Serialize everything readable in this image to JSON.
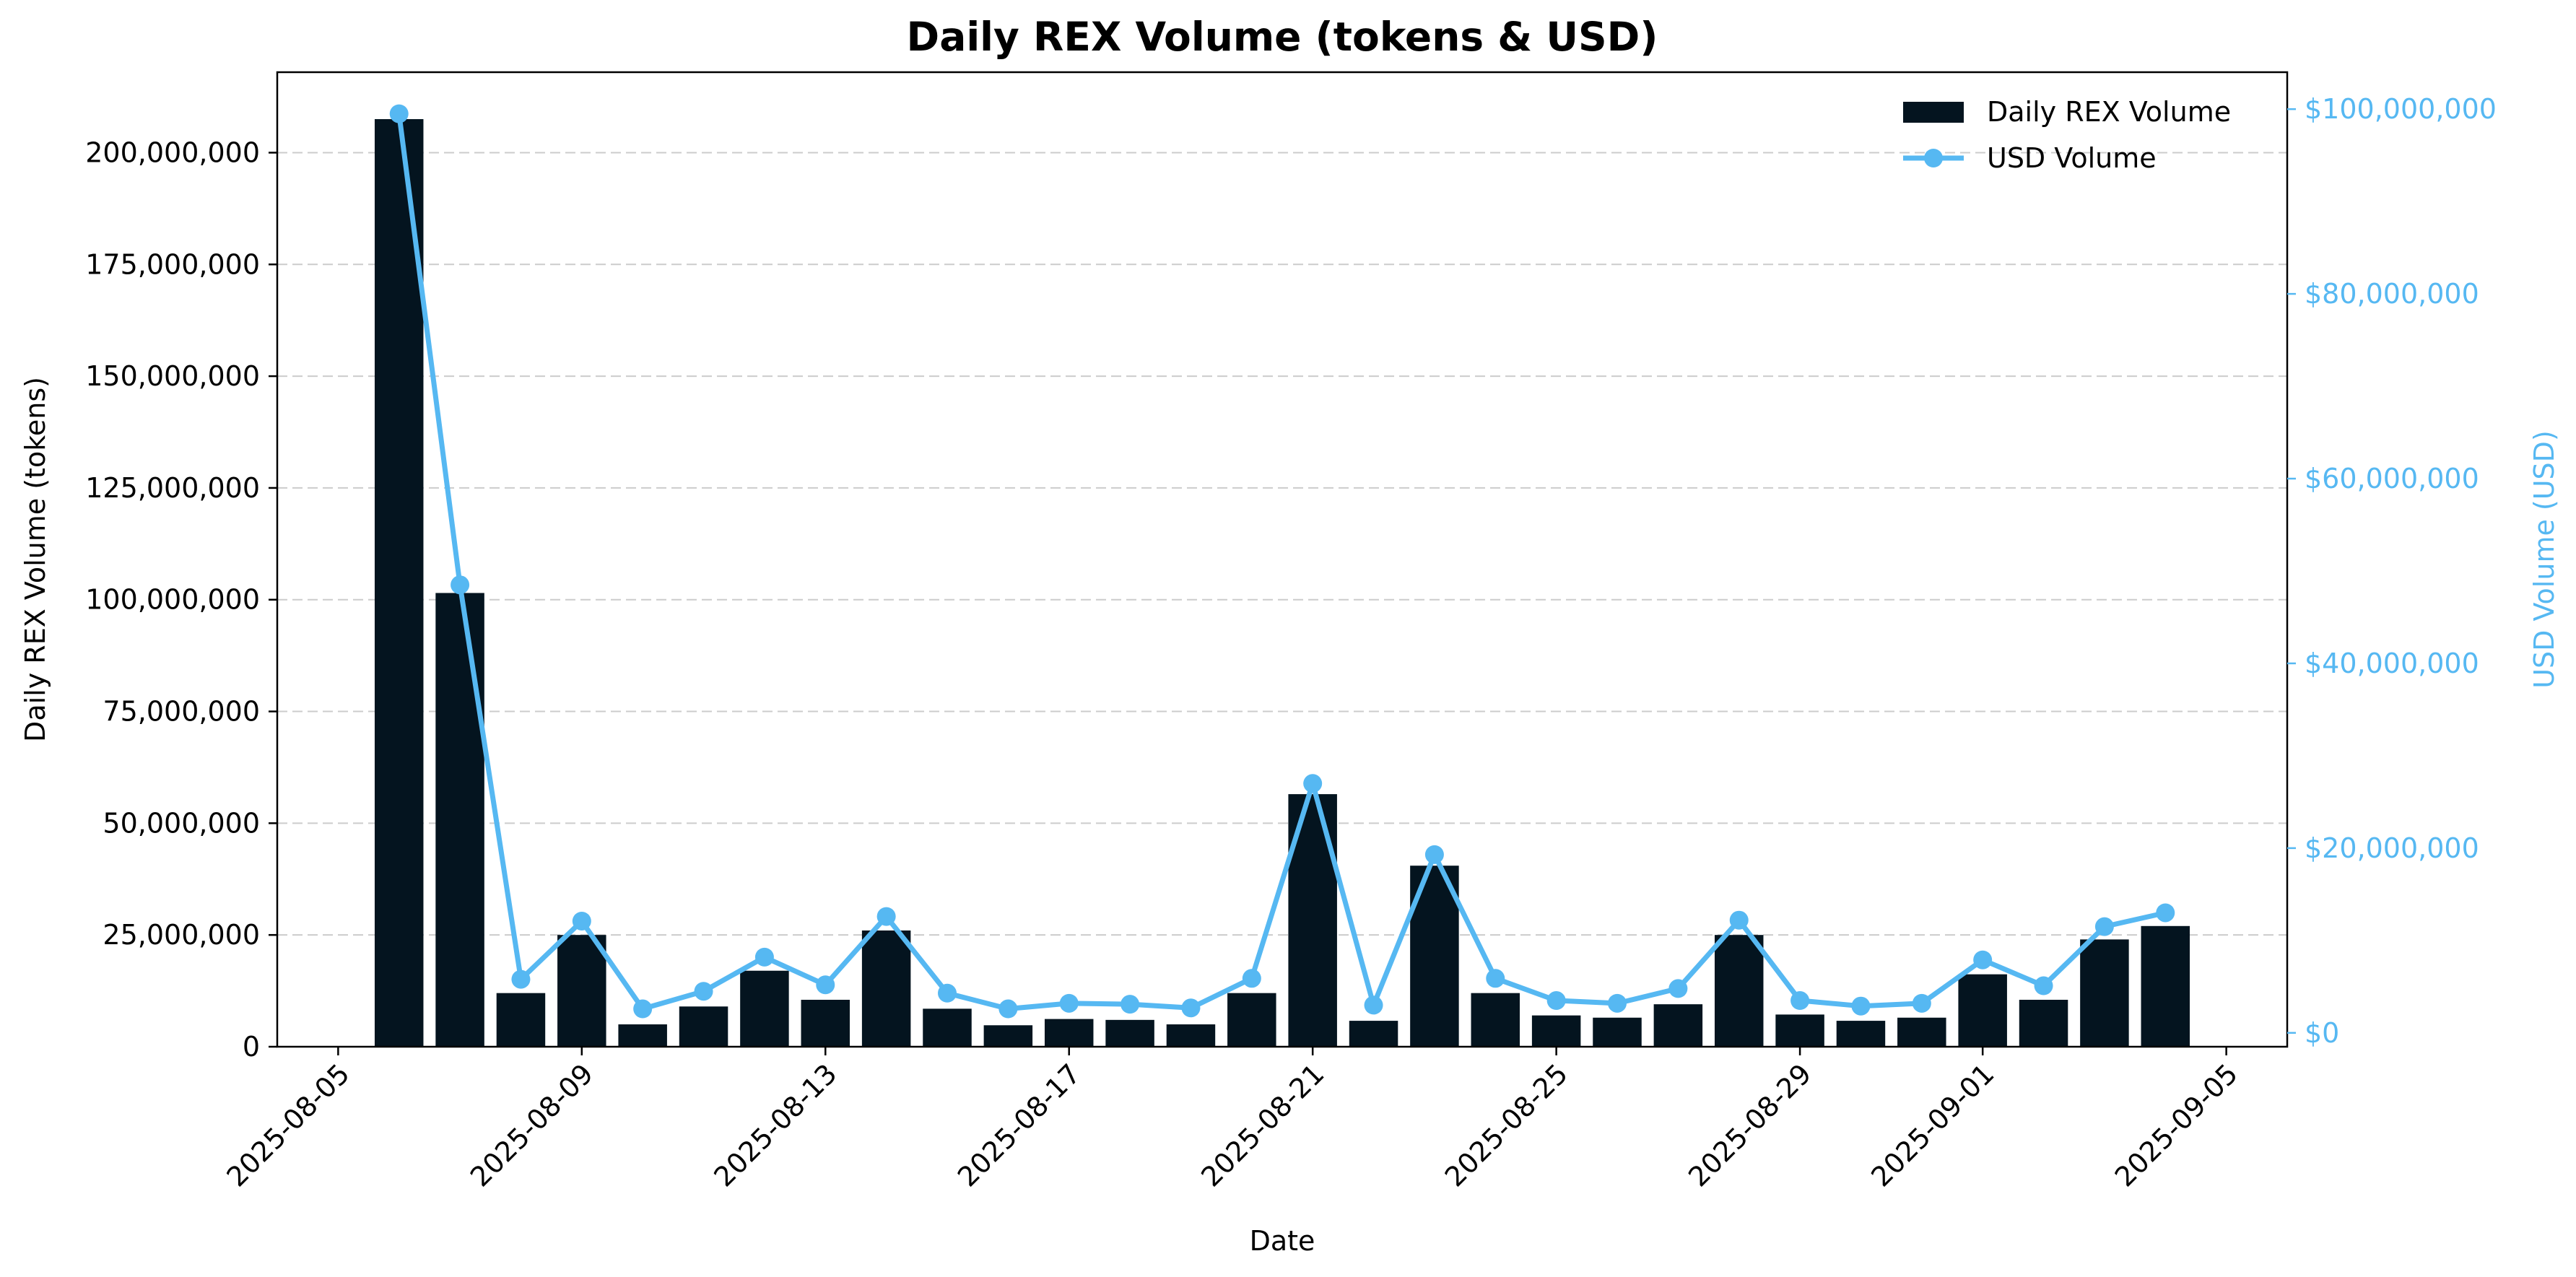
{
  "chart_data": {
    "type": "bar+line",
    "title": "Daily REX Volume (tokens & USD)",
    "xlabel": "Date",
    "ylabel": "Daily REX Volume (tokens)",
    "y2label": "USD Volume (USD)",
    "grid": true,
    "legend_position": "top-right",
    "colors": {
      "bars": "#04141f",
      "line": "#56b8f2",
      "grid": "#cccccc",
      "axis": "#000000"
    },
    "x_range": [
      "2025-08-04",
      "2025-09-06"
    ],
    "x_ticks": [
      "2025-08-05",
      "2025-08-09",
      "2025-08-13",
      "2025-08-17",
      "2025-08-21",
      "2025-08-25",
      "2025-08-29",
      "2025-09-01",
      "2025-09-05"
    ],
    "y_ticks": [
      0,
      25000000,
      50000000,
      75000000,
      100000000,
      125000000,
      150000000,
      175000000,
      200000000
    ],
    "y_tick_labels": [
      "0",
      "25,000,000",
      "50,000,000",
      "75,000,000",
      "100,000,000",
      "125,000,000",
      "150,000,000",
      "175,000,000",
      "200,000,000"
    ],
    "ylim": [
      0,
      218000000
    ],
    "y2_ticks": [
      0,
      20000000,
      40000000,
      60000000,
      80000000,
      100000000
    ],
    "y2_tick_labels": [
      "$0",
      "$20,000,000",
      "$40,000,000",
      "$60,000,000",
      "$80,000,000",
      "$100,000,000"
    ],
    "y2lim": [
      -1500000,
      104000000
    ],
    "categories": [
      "2025-08-06",
      "2025-08-07",
      "2025-08-08",
      "2025-08-09",
      "2025-08-10",
      "2025-08-11",
      "2025-08-12",
      "2025-08-13",
      "2025-08-14",
      "2025-08-15",
      "2025-08-16",
      "2025-08-17",
      "2025-08-18",
      "2025-08-19",
      "2025-08-20",
      "2025-08-21",
      "2025-08-22",
      "2025-08-23",
      "2025-08-24",
      "2025-08-25",
      "2025-08-26",
      "2025-08-27",
      "2025-08-28",
      "2025-08-29",
      "2025-08-30",
      "2025-08-31",
      "2025-09-01",
      "2025-09-02",
      "2025-09-03",
      "2025-09-04"
    ],
    "series": [
      {
        "name": "Daily REX Volume",
        "kind": "bar",
        "axis": "left",
        "values": [
          207500000,
          101500000,
          12000000,
          25000000,
          5000000,
          9000000,
          17000000,
          10500000,
          26000000,
          8500000,
          4800000,
          6200000,
          6000000,
          5000000,
          12000000,
          56500000,
          5800000,
          40500000,
          12000000,
          7000000,
          6500000,
          9500000,
          25000000,
          7200000,
          5800000,
          6500000,
          16200000,
          10500000,
          24000000,
          27000000
        ]
      },
      {
        "name": "USD Volume",
        "kind": "line",
        "axis": "right",
        "values": [
          99500000,
          48500000,
          5800000,
          12100000,
          2600000,
          4500000,
          8200000,
          5200000,
          12600000,
          4300000,
          2600000,
          3200000,
          3100000,
          2700000,
          5900000,
          27000000,
          3000000,
          19300000,
          5900000,
          3500000,
          3200000,
          4800000,
          12200000,
          3500000,
          2900000,
          3200000,
          7900000,
          5100000,
          11500000,
          13000000
        ]
      }
    ]
  }
}
